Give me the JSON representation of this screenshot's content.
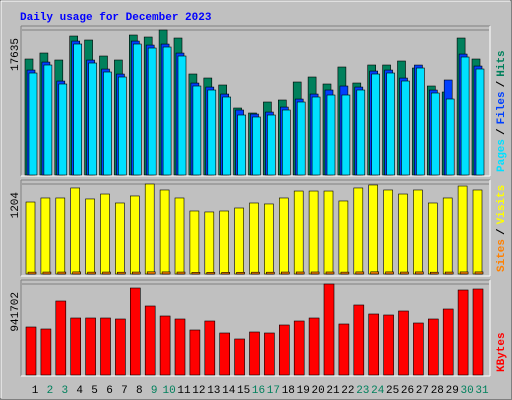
{
  "title": "Daily usage for December 2023",
  "legend_separator": "/",
  "chart_data": [
    {
      "type": "bar",
      "ylim": [
        0,
        17635
      ],
      "yticks": [
        17635
      ],
      "series": [
        {
          "name": "Hits",
          "color": "#00805c",
          "values": [
            14106,
            14835,
            13984,
            16902,
            16416,
            14470,
            13984,
            17024,
            16781,
            17635,
            16659,
            12282,
            11795,
            10944,
            8147,
            7539,
            8877,
            9120,
            11309,
            11917,
            11066,
            13133,
            11187,
            13376,
            13376,
            13862,
            13011,
            10822,
            10093,
            16659,
            14106
          ]
        },
        {
          "name": "Files",
          "color": "#0040ff",
          "values": [
            12763,
            13736,
            11426,
            16290,
            13979,
            12885,
            12277,
            16290,
            15803,
            15925,
            14830,
            11182,
            10696,
            9845,
            7904,
            7413,
            7656,
            8264,
            9237,
            9845,
            10336,
            10822,
            10696,
            12642,
            12763,
            11790,
            13371,
            10331,
            11552,
            14709,
            13250
          ]
        },
        {
          "name": "Pages",
          "color": "#00e0ff",
          "values": [
            12403,
            13376,
            11066,
            15930,
            13619,
            12525,
            11917,
            15930,
            15443,
            15565,
            14470,
            10822,
            10336,
            9485,
            7296,
            7053,
            7296,
            7904,
            8877,
            9485,
            9728,
            9728,
            10336,
            12282,
            12403,
            11430,
            13011,
            9971,
            9242,
            14349,
            12890
          ]
        }
      ]
    },
    {
      "type": "bar",
      "ylim": [
        0,
        1204
      ],
      "yticks": [
        1204
      ],
      "series": [
        {
          "name": "Visits",
          "color": "#ffff00",
          "values": [
            963,
            1017,
            1017,
            1151,
            1004,
            1070,
            950,
            1044,
            1204,
            1124,
            1017,
            843,
            830,
            843,
            883,
            950,
            937,
            1017,
            1110,
            1110,
            1110,
            977,
            1151,
            1191,
            1124,
            1070,
            1124,
            950,
            1017,
            1177,
            1124
          ]
        },
        {
          "name": "Sites",
          "color": "#ff8000",
          "values": [
            25,
            26,
            26,
            28,
            25,
            26,
            24,
            26,
            29,
            28,
            26,
            22,
            22,
            22,
            23,
            24,
            24,
            26,
            27,
            27,
            27,
            25,
            28,
            29,
            28,
            26,
            28,
            24,
            26,
            28,
            28
          ]
        }
      ]
    },
    {
      "type": "bar",
      "ylim": [
        0,
        941702
      ],
      "yticks": [
        941702
      ],
      "categories": [
        "1",
        "2",
        "3",
        "4",
        "5",
        "6",
        "7",
        "8",
        "9",
        "10",
        "11",
        "12",
        "13",
        "14",
        "15",
        "16",
        "17",
        "18",
        "19",
        "20",
        "21",
        "22",
        "23",
        "24",
        "25",
        "26",
        "27",
        "28",
        "29",
        "30",
        "31"
      ],
      "label_colors": [
        "#000000",
        "#00805c",
        "#00805c",
        "#000000",
        "#000000",
        "#000000",
        "#000000",
        "#000000",
        "#00805c",
        "#00805c",
        "#000000",
        "#000000",
        "#000000",
        "#000000",
        "#000000",
        "#00805c",
        "#00805c",
        "#000000",
        "#000000",
        "#000000",
        "#000000",
        "#000000",
        "#00805c",
        "#00805c",
        "#000000",
        "#000000",
        "#000000",
        "#000000",
        "#000000",
        "#00805c",
        "#00805c"
      ],
      "series": [
        {
          "name": "KBytes",
          "color": "#ff0000",
          "values": [
            496704,
            476008,
            765752,
            589836,
            589836,
            589836,
            579488,
            900276,
            714012,
            610532,
            579488,
            465660,
            558792,
            434616,
            372528,
            444964,
            434616,
            517400,
            558792,
            589836,
            941702,
            527748,
            724360,
            631228,
            620880,
            662272,
            538096,
            579488,
            682968,
            879580,
            889928
          ]
        }
      ]
    }
  ]
}
